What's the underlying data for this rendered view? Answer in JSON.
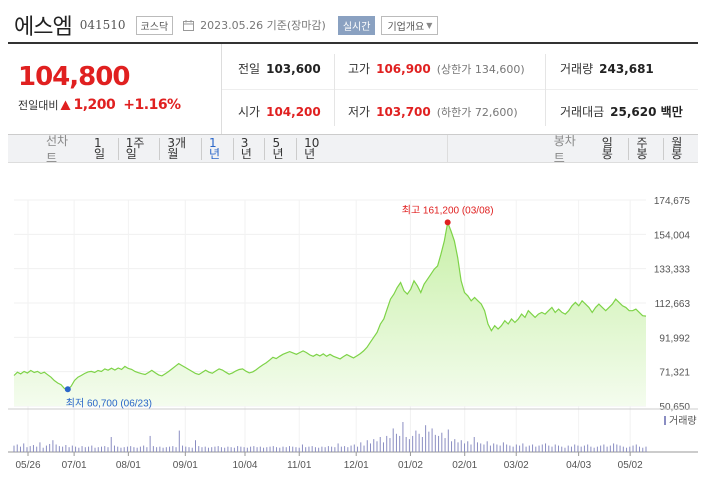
{
  "header": {
    "name": "에스엠",
    "code": "041510",
    "market": "코스닥",
    "basis_date": "2023.05.26  기준(장마감)",
    "realtime_label": "실시간",
    "company_label": "기업개요"
  },
  "price": {
    "current": "104,800",
    "change_label": "전일대비",
    "change_amount": "1,200",
    "change_percent": "+1.16%",
    "direction": "up"
  },
  "stats": {
    "prev_close_label": "전일",
    "prev_close": "103,600",
    "high_label": "고가",
    "high": "106,900",
    "upper_limit": "(상한가 134,600)",
    "volume_label": "거래량",
    "volume": "243,681",
    "open_label": "시가",
    "open": "104,200",
    "low_label": "저가",
    "low": "103,700",
    "lower_limit": "(하한가 72,600)",
    "trade_value_label": "거래대금",
    "trade_value": "25,620 백만"
  },
  "tabs": {
    "line_label": "선차트",
    "periods": [
      "1일",
      "1주일",
      "3개월",
      "1년",
      "3년",
      "5년",
      "10년"
    ],
    "active_period": "1년",
    "candle_label": "봉차트",
    "candle_periods": [
      "일봉",
      "주봉",
      "월봉"
    ]
  },
  "colors": {
    "accent_red": "#e02020",
    "accent_blue": "#2a66c9",
    "line_green": "#7ed348",
    "volume_bar": "#8a8dc2"
  },
  "chart_data": {
    "type": "area",
    "y_ticks": [
      "174,675",
      "154,004",
      "133,333",
      "112,663",
      "91,992",
      "71,321",
      "50,650"
    ],
    "ylim": [
      50650,
      174675
    ],
    "x_ticks": [
      "05/26",
      "07/01",
      "08/01",
      "09/01",
      "10/04",
      "11/01",
      "12/01",
      "01/02",
      "02/01",
      "03/02",
      "04/03",
      "05/02"
    ],
    "volume_legend": "거래량",
    "max_annotation": "최고 161,200 (03/08)",
    "min_annotation": "최저 60,700 (06/23)",
    "max_value": 161200,
    "min_value": 60700,
    "series": [
      {
        "name": "price",
        "values": [
          69000,
          71000,
          70000,
          71500,
          70500,
          72000,
          70800,
          71500,
          70200,
          71000,
          69500,
          68000,
          66000,
          64500,
          63500,
          61200,
          60700,
          62500,
          66000,
          68000,
          69000,
          70200,
          71200,
          71500,
          70800,
          72000,
          71400,
          73000,
          72200,
          73400,
          72300,
          73500,
          72700,
          74500,
          73200,
          72700,
          71400,
          70700,
          70100,
          69600,
          70800,
          72100,
          70700,
          69400,
          68800,
          70100,
          71400,
          73000,
          74600,
          76200,
          75000,
          73800,
          72600,
          71400,
          70200,
          69600,
          70900,
          72200,
          71000,
          70400,
          71700,
          73000,
          72300,
          71000,
          69800,
          70600,
          71800,
          72600,
          73000,
          71600,
          70600,
          71200,
          72400,
          74000,
          75400,
          76600,
          78200,
          80000,
          79200,
          80600,
          81800,
          82600,
          83400,
          82600,
          81800,
          82800,
          83800,
          82800,
          81400,
          80600,
          81800,
          80800,
          82000,
          80600,
          81800,
          80600,
          79800,
          79000,
          80400,
          81600,
          80600,
          79600,
          80800,
          82200,
          83800,
          86000,
          89000,
          92000,
          95000,
          100000,
          103000,
          109000,
          115000,
          118000,
          122000,
          125000,
          120000,
          118000,
          121000,
          126000,
          123000,
          119000,
          124000,
          127000,
          130000,
          133000,
          135000,
          142000,
          150000,
          161200,
          156000,
          150000,
          140000,
          126000,
          119000,
          117000,
          114000,
          116000,
          114000,
          112000,
          108000,
          100000,
          96000,
          99000,
          97000,
          99000,
          102000,
          100000,
          103000,
          101000,
          103000,
          106000,
          104000,
          108000,
          106000,
          104000,
          106000,
          107000,
          106000,
          108000,
          110000,
          107000,
          109000,
          107000,
          106000,
          108000,
          111000,
          113000,
          111000,
          114000,
          112000,
          110000,
          107000,
          110000,
          112000,
          110000,
          108000,
          110000,
          112000,
          115000,
          113000,
          111000,
          110000,
          108000,
          108000,
          109000,
          107000,
          105000,
          104800
        ]
      },
      {
        "name": "volume",
        "values": [
          12,
          14,
          10,
          16,
          9,
          11,
          13,
          10,
          18,
          8,
          12,
          15,
          22,
          14,
          11,
          10,
          13,
          9,
          12,
          10,
          8,
          11,
          9,
          10,
          12,
          8,
          9,
          10,
          11,
          9,
          28,
          12,
          10,
          8,
          9,
          10,
          11,
          9,
          8,
          10,
          12,
          9,
          30,
          11,
          9,
          10,
          8,
          9,
          10,
          11,
          9,
          40,
          12,
          10,
          9,
          8,
          22,
          11,
          9,
          10,
          8,
          9,
          10,
          11,
          9,
          8,
          10,
          9,
          8,
          11,
          10,
          9,
          8,
          10,
          11,
          9,
          10,
          8,
          9,
          10,
          11,
          9,
          8,
          10,
          9,
          11,
          10,
          9,
          8,
          14,
          9,
          10,
          11,
          9,
          8,
          10,
          9,
          11,
          10,
          9,
          16,
          10,
          11,
          9,
          12,
          14,
          10,
          18,
          12,
          22,
          16,
          24,
          20,
          28,
          18,
          30,
          26,
          44,
          34,
          30,
          56,
          28,
          24,
          30,
          40,
          34,
          28,
          50,
          38,
          44,
          32,
          30,
          36,
          26,
          42,
          20,
          24,
          18,
          22,
          16,
          20,
          14,
          28,
          18,
          16,
          14,
          20,
          12,
          16,
          14,
          12,
          18,
          14,
          12,
          10,
          14,
          12,
          16,
          10,
          12,
          14,
          10,
          12,
          14,
          16,
          12,
          10,
          14,
          12,
          10,
          8,
          12,
          10,
          14,
          12,
          10,
          12,
          14,
          10,
          8,
          10,
          12,
          14,
          10,
          12,
          16,
          14,
          12,
          10,
          8,
          10,
          12,
          14,
          10,
          8,
          10
        ]
      }
    ]
  }
}
